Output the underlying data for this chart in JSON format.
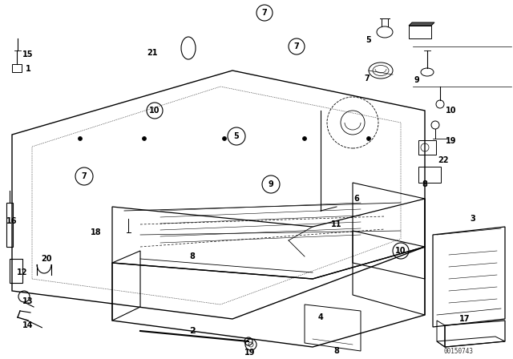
{
  "title": "",
  "background_color": "#ffffff",
  "line_color": "#000000",
  "part_numbers": [
    1,
    2,
    3,
    4,
    5,
    6,
    7,
    8,
    9,
    10,
    11,
    12,
    13,
    14,
    15,
    16,
    17,
    18,
    19,
    20,
    21,
    22
  ],
  "watermark": "00150743",
  "fig_width": 6.4,
  "fig_height": 4.48,
  "dpi": 100
}
